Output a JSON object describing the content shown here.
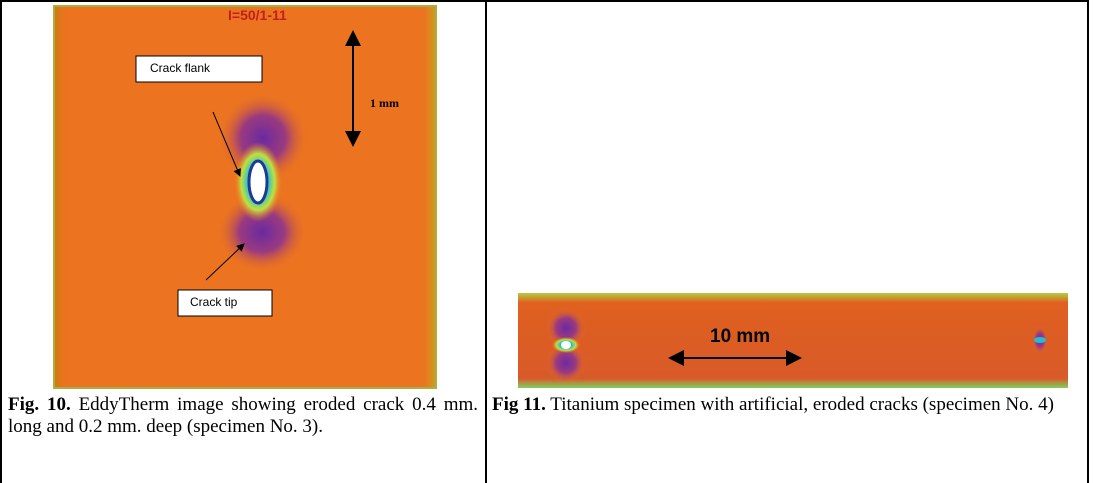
{
  "figures": [
    {
      "labels": {
        "image_tag": "I=50/1-11",
        "crack_flank": "Crack flank",
        "scale": "1 mm",
        "crack_tip": "Crack tip"
      },
      "caption": {
        "label": "Fig. 10.",
        "text": "EddyTherm image showing eroded crack 0.4 mm. long and 0.2 mm. deep (specimen No. 3)."
      }
    },
    {
      "labels": {
        "scale": "10 mm"
      },
      "caption": {
        "label": "Fig 11.",
        "text": "Titanium specimen with artificial, eroded cracks (specimen No. 4)"
      }
    }
  ]
}
